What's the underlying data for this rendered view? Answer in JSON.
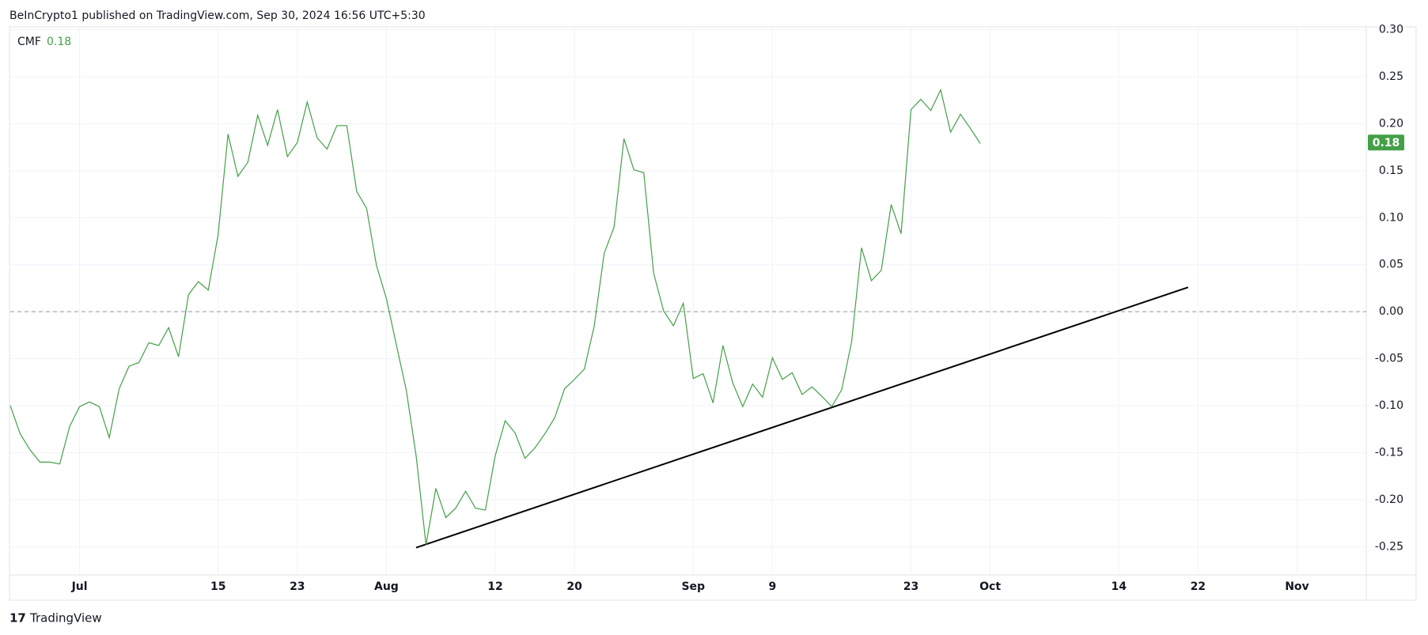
{
  "chart_data": {
    "type": "line",
    "header": "BeInCrypto1 published on TradingView.com, Sep 30, 2024 16:56 UTC+5:30",
    "indicator": "CMF",
    "last_value": 0.18,
    "footer": "TradingView",
    "x": [
      "06-24",
      "06-25",
      "06-26",
      "06-27",
      "06-28",
      "06-29",
      "06-30",
      "07-01",
      "07-02",
      "07-03",
      "07-04",
      "07-05",
      "07-06",
      "07-07",
      "07-08",
      "07-09",
      "07-10",
      "07-11",
      "07-12",
      "07-13",
      "07-14",
      "07-15",
      "07-16",
      "07-17",
      "07-18",
      "07-19",
      "07-20",
      "07-21",
      "07-22",
      "07-23",
      "07-24",
      "07-25",
      "07-26",
      "07-27",
      "07-28",
      "07-29",
      "07-30",
      "07-31",
      "08-01",
      "08-02",
      "08-03",
      "08-04",
      "08-05",
      "08-06",
      "08-07",
      "08-08",
      "08-09",
      "08-10",
      "08-11",
      "08-12",
      "08-13",
      "08-14",
      "08-15",
      "08-16",
      "08-17",
      "08-18",
      "08-19",
      "08-20",
      "08-21",
      "08-22",
      "08-23",
      "08-24",
      "08-25",
      "08-26",
      "08-27",
      "08-28",
      "08-29",
      "08-30",
      "08-31",
      "09-01",
      "09-02",
      "09-03",
      "09-04",
      "09-05",
      "09-06",
      "09-07",
      "09-08",
      "09-09",
      "09-10",
      "09-11",
      "09-12",
      "09-13",
      "09-14",
      "09-15",
      "09-16",
      "09-17",
      "09-18",
      "09-19",
      "09-20",
      "09-21",
      "09-22",
      "09-23",
      "09-24",
      "09-25",
      "09-26",
      "09-27",
      "09-28",
      "09-29",
      "09-30"
    ],
    "series": [
      {
        "name": "CMF",
        "color": "#43a047",
        "values": [
          -0.1,
          -0.13,
          -0.147,
          -0.16,
          -0.16,
          -0.162,
          -0.122,
          -0.101,
          -0.096,
          -0.101,
          -0.134,
          -0.082,
          -0.058,
          -0.054,
          -0.033,
          -0.036,
          -0.017,
          -0.048,
          0.018,
          0.032,
          0.023,
          0.082,
          0.189,
          0.144,
          0.159,
          0.209,
          0.177,
          0.215,
          0.165,
          0.18,
          0.223,
          0.185,
          0.173,
          0.198,
          0.198,
          0.128,
          0.11,
          0.049,
          0.014,
          -0.035,
          -0.083,
          -0.153,
          -0.248,
          -0.188,
          -0.219,
          -0.209,
          -0.191,
          -0.209,
          -0.211,
          -0.153,
          -0.116,
          -0.129,
          -0.156,
          -0.145,
          -0.13,
          -0.113,
          -0.082,
          -0.072,
          -0.061,
          -0.015,
          0.062,
          0.09,
          0.184,
          0.151,
          0.148,
          0.041,
          0.001,
          -0.015,
          0.009,
          -0.071,
          -0.066,
          -0.097,
          -0.036,
          -0.076,
          -0.101,
          -0.077,
          -0.091,
          -0.049,
          -0.072,
          -0.065,
          -0.088,
          -0.08,
          -0.09,
          -0.101,
          -0.083,
          -0.032,
          0.068,
          0.033,
          0.044,
          0.114,
          0.083,
          0.215,
          0.226,
          0.214,
          0.236,
          0.191,
          0.21,
          0.195,
          0.179
        ]
      }
    ],
    "trendline": {
      "x": [
        "08-04",
        "10-21"
      ],
      "values": [
        -0.251,
        0.026
      ],
      "color": "#000000"
    },
    "baseline": 0,
    "xlim": [
      "06-24",
      "11-08"
    ],
    "xticks": [
      {
        "value": "07-01",
        "label": "Jul"
      },
      {
        "value": "07-15",
        "label": "15"
      },
      {
        "value": "07-23",
        "label": "23"
      },
      {
        "value": "08-01",
        "label": "Aug"
      },
      {
        "value": "08-12",
        "label": "12"
      },
      {
        "value": "08-20",
        "label": "20"
      },
      {
        "value": "09-01",
        "label": "Sep"
      },
      {
        "value": "09-09",
        "label": "9"
      },
      {
        "value": "09-23",
        "label": "23"
      },
      {
        "value": "10-01",
        "label": "Oct"
      },
      {
        "value": "10-14",
        "label": "14"
      },
      {
        "value": "10-22",
        "label": "22"
      },
      {
        "value": "11-01",
        "label": "Nov"
      }
    ],
    "ylim": [
      -0.28,
      0.303
    ],
    "yticks": [
      {
        "value": 0.3,
        "label": "0.30"
      },
      0.25,
      {
        "value": 0.2,
        "label": "0.20"
      },
      0.15,
      {
        "value": 0.1,
        "label": "0.10"
      },
      0.05,
      {
        "value": 0,
        "label": "0.00"
      },
      -0.05,
      {
        "value": -0.1,
        "label": "-0.10"
      },
      -0.15,
      {
        "value": -0.2,
        "label": "-0.20"
      },
      -0.25
    ],
    "grid": true
  }
}
